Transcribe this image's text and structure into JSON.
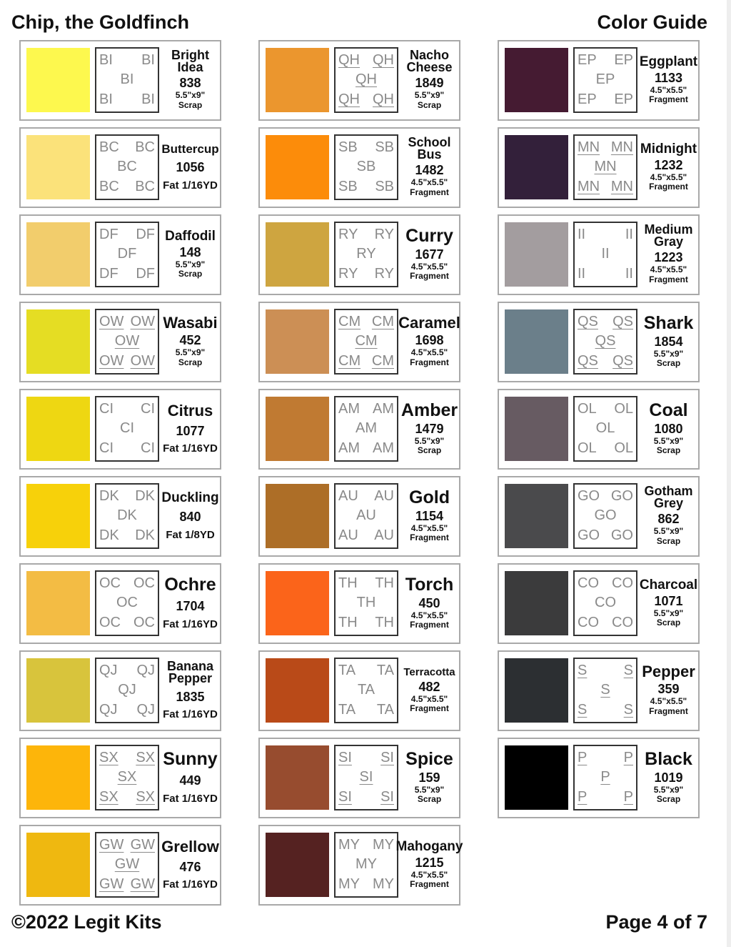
{
  "header": {
    "title": "Chip, the Goldfinch",
    "guide": "Color Guide"
  },
  "footer": {
    "copyright": "©2022 Legit Kits",
    "page": "Page 4 of 7"
  },
  "columns": [
    [
      {
        "name": "Bright Idea",
        "code": "BI",
        "u": false,
        "color": "#fdf84e",
        "number": "838",
        "size": "5.5\"x9\"",
        "type": "Scrap"
      },
      {
        "name": "Buttercup",
        "code": "BC",
        "u": false,
        "color": "#fbe27a",
        "number": "1056",
        "fat": "Fat 1/16YD"
      },
      {
        "name": "Daffodil",
        "code": "DF",
        "u": false,
        "color": "#f2cd6c",
        "number": "148",
        "size": "5.5\"x9\"",
        "type": "Scrap"
      },
      {
        "name": "Wasabi",
        "code": "OW",
        "u": true,
        "color": "#e5dd23",
        "number": "452",
        "size": "5.5\"x9\"",
        "type": "Scrap"
      },
      {
        "name": "Citrus",
        "code": "CI",
        "u": false,
        "color": "#eed712",
        "number": "1077",
        "fat": "Fat 1/16YD"
      },
      {
        "name": "Duckling",
        "code": "DK",
        "u": false,
        "color": "#f7d10a",
        "number": "840",
        "fat": "Fat 1/8YD"
      },
      {
        "name": "Ochre",
        "code": "OC",
        "u": false,
        "color": "#f3bc44",
        "number": "1704",
        "fat": "Fat 1/16YD"
      },
      {
        "name": "Banana Pepper",
        "code": "QJ",
        "u": false,
        "color": "#d8c43c",
        "number": "1835",
        "fat": "Fat 1/16YD"
      },
      {
        "name": "Sunny",
        "code": "SX",
        "u": true,
        "color": "#fdb50a",
        "number": "449",
        "fat": "Fat 1/16YD"
      },
      {
        "name": "Grellow",
        "code": "GW",
        "u": true,
        "color": "#efb810",
        "number": "476",
        "fat": "Fat 1/16YD"
      }
    ],
    [
      {
        "name": "Nacho Cheese",
        "code": "QH",
        "u": true,
        "color": "#eb962e",
        "number": "1849",
        "size": "5.5\"x9\"",
        "type": "Scrap"
      },
      {
        "name": "School Bus",
        "code": "SB",
        "u": false,
        "color": "#fc8c0a",
        "number": "1482",
        "size": "4.5\"x5.5\"",
        "type": "Fragment"
      },
      {
        "name": "Curry",
        "code": "RY",
        "u": false,
        "color": "#cea540",
        "number": "1677",
        "size": "4.5\"x5.5\"",
        "type": "Fragment"
      },
      {
        "name": "Caramel",
        "code": "CM",
        "u": true,
        "color": "#cc8f55",
        "number": "1698",
        "size": "4.5\"x5.5\"",
        "type": "Fragment"
      },
      {
        "name": "Amber",
        "code": "AM",
        "u": false,
        "color": "#c07a32",
        "number": "1479",
        "size": "5.5\"x9\"",
        "type": "Scrap"
      },
      {
        "name": "Gold",
        "code": "AU",
        "u": false,
        "color": "#ad6e27",
        "number": "1154",
        "size": "4.5\"x5.5\"",
        "type": "Fragment"
      },
      {
        "name": "Torch",
        "code": "TH",
        "u": false,
        "color": "#fb641a",
        "number": "450",
        "size": "4.5\"x5.5\"",
        "type": "Fragment"
      },
      {
        "name": "Terracotta",
        "code": "TA",
        "u": false,
        "color": "#b94a18",
        "number": "482",
        "size": "4.5\"x5.5\"",
        "type": "Fragment"
      },
      {
        "name": "Spice",
        "code": "SI",
        "u": true,
        "color": "#974c2f",
        "number": "159",
        "size": "5.5\"x9\"",
        "type": "Scrap"
      },
      {
        "name": "Mahogany",
        "code": "MY",
        "u": false,
        "color": "#552221",
        "number": "1215",
        "size": "4.5\"x5.5\"",
        "type": "Fragment"
      }
    ],
    [
      {
        "name": "Eggplant",
        "code": "EP",
        "u": false,
        "color": "#451b32",
        "number": "1133",
        "size": "4.5\"x5.5\"",
        "type": "Fragment"
      },
      {
        "name": "Midnight",
        "code": "MN",
        "u": true,
        "color": "#33203a",
        "number": "1232",
        "size": "4.5\"x5.5\"",
        "type": "Fragment"
      },
      {
        "name": "Medium Gray",
        "code": "II",
        "u": false,
        "color": "#a39d9f",
        "number": "1223",
        "size": "4.5\"x5.5\"",
        "type": "Fragment"
      },
      {
        "name": "Shark",
        "code": "QS",
        "u": true,
        "color": "#6b7f8a",
        "number": "1854",
        "size": "5.5\"x9\"",
        "type": "Scrap"
      },
      {
        "name": "Coal",
        "code": "OL",
        "u": false,
        "color": "#675b62",
        "number": "1080",
        "size": "5.5\"x9\"",
        "type": "Scrap"
      },
      {
        "name": "Gotham Grey",
        "code": "GO",
        "u": false,
        "color": "#4a4a4c",
        "number": "862",
        "size": "5.5\"x9\"",
        "type": "Scrap"
      },
      {
        "name": "Charcoal",
        "code": "CO",
        "u": false,
        "color": "#3b3b3c",
        "number": "1071",
        "size": "5.5\"x9\"",
        "type": "Scrap"
      },
      {
        "name": "Pepper",
        "code": "S",
        "u": true,
        "color": "#2c2f32",
        "number": "359",
        "size": "4.5\"x5.5\"",
        "type": "Fragment"
      },
      {
        "name": "Black",
        "code": "P",
        "u": true,
        "color": "#000000",
        "number": "1019",
        "size": "5.5\"x9\"",
        "type": "Scrap"
      }
    ]
  ]
}
